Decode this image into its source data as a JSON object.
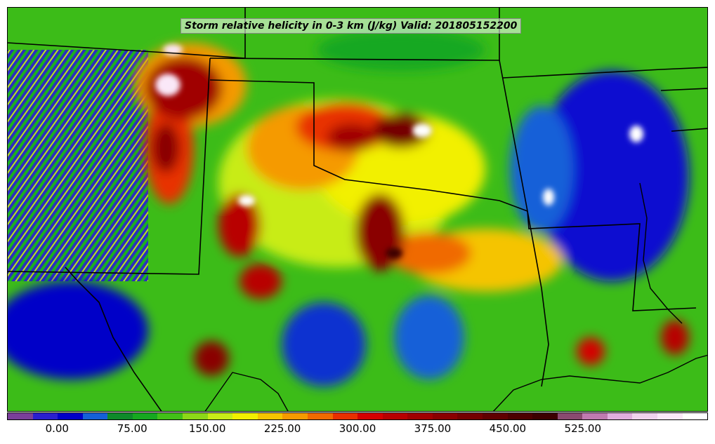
{
  "title": "Storm relative helicity in 0-3 km (J/kg) Valid: 201805152200",
  "colorbar": {
    "colors": [
      "#7a3f9a",
      "#2a1fcf",
      "#0000c8",
      "#1560d8",
      "#0f8a2a",
      "#16a820",
      "#42c018",
      "#8cd818",
      "#c8ec18",
      "#f2f000",
      "#f5c400",
      "#f59a00",
      "#f06a00",
      "#e83000",
      "#d40000",
      "#b80000",
      "#a00000",
      "#8a0000",
      "#740000",
      "#600000",
      "#4c0000",
      "#3c0000",
      "#8a4a70",
      "#c07ab0",
      "#e0aede",
      "#f0d2ee",
      "#fae8f8",
      "#ffffff"
    ],
    "tick_labels": [
      "0.00",
      "75.00",
      "150.00",
      "225.00",
      "300.00",
      "375.00",
      "450.00",
      "525.00"
    ]
  },
  "icons": [
    "map-field",
    "state-borders",
    "coastline"
  ]
}
